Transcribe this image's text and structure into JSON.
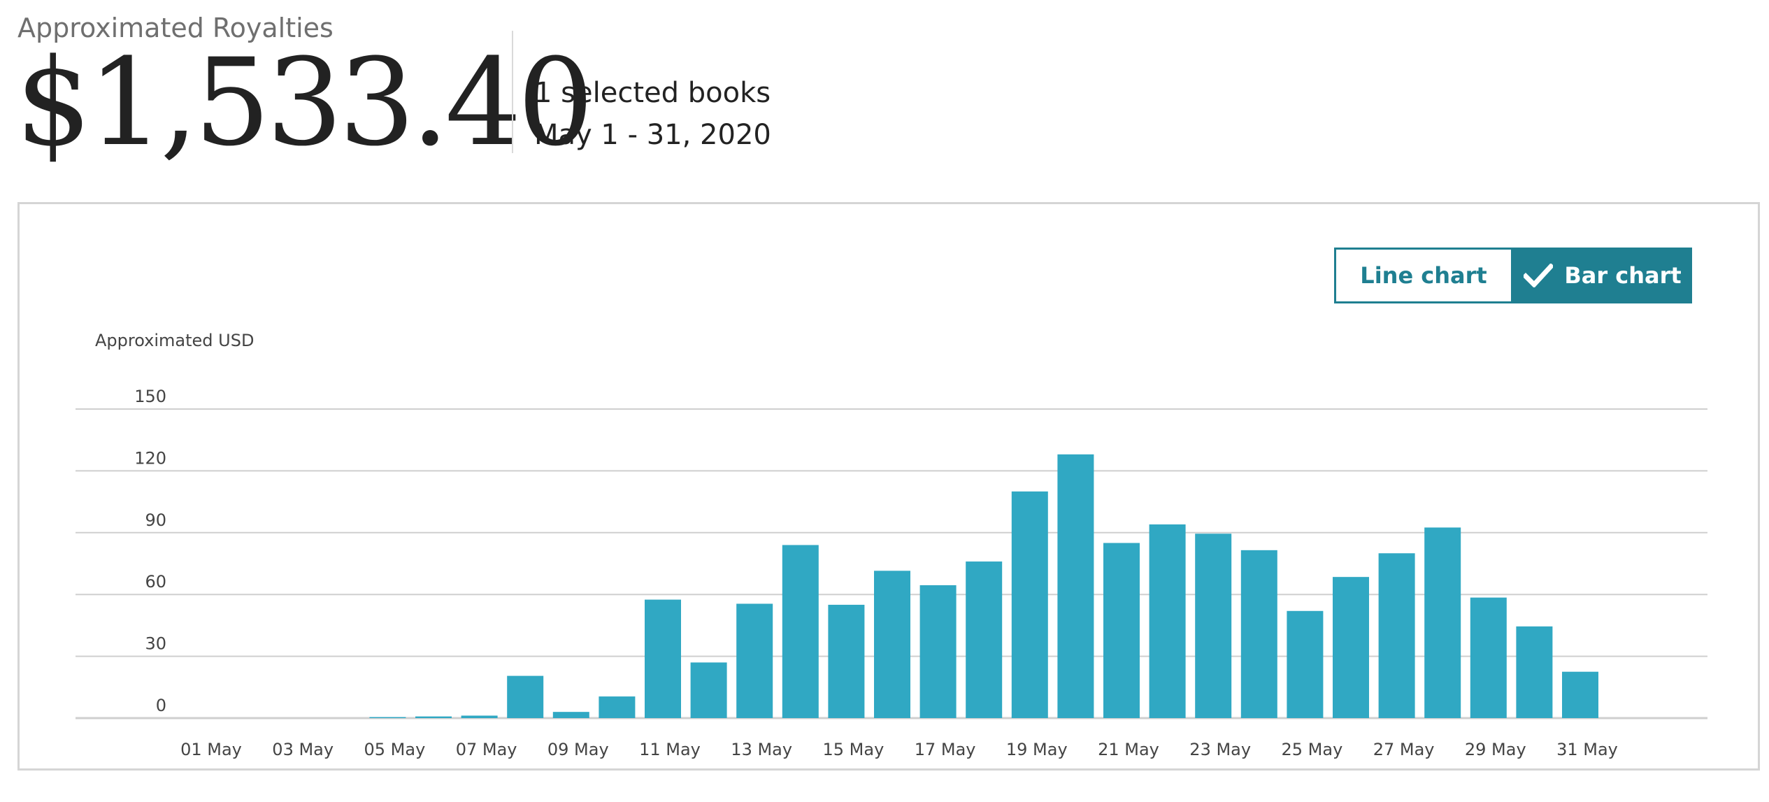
{
  "header": {
    "title": "Approximated Royalties",
    "amount": "$1,533.40",
    "books": "1 selected books",
    "dates": "May 1 - 31, 2020"
  },
  "toggle": {
    "line_label": "Line chart",
    "bar_label": "Bar chart",
    "selected": "bar",
    "accent": "#1f7f91"
  },
  "colors": {
    "bar": "#30a8c3",
    "grid": "#cfcfcf"
  },
  "chart_data": {
    "type": "bar",
    "ylabel": "Approximated USD",
    "ylim": [
      0,
      150
    ],
    "yticks": [
      0,
      30,
      60,
      90,
      120,
      150
    ],
    "grid": true,
    "categories": [
      "01 May",
      "02 May",
      "03 May",
      "04 May",
      "05 May",
      "06 May",
      "07 May",
      "08 May",
      "09 May",
      "10 May",
      "11 May",
      "12 May",
      "13 May",
      "14 May",
      "15 May",
      "16 May",
      "17 May",
      "18 May",
      "19 May",
      "20 May",
      "21 May",
      "22 May",
      "23 May",
      "24 May",
      "25 May",
      "26 May",
      "27 May",
      "28 May",
      "29 May",
      "30 May",
      "31 May"
    ],
    "xtick_labels": [
      "01 May",
      "03 May",
      "05 May",
      "07 May",
      "09 May",
      "11 May",
      "13 May",
      "15 May",
      "17 May",
      "19 May",
      "21 May",
      "23 May",
      "25 May",
      "27 May",
      "29 May",
      "31 May"
    ],
    "values": [
      0,
      0,
      0,
      0,
      0.5,
      0.8,
      1.2,
      20.5,
      3,
      10.5,
      57.5,
      27,
      55.5,
      84,
      55,
      71.5,
      64.5,
      76,
      110,
      128,
      85,
      94,
      89.5,
      81.5,
      52,
      68.5,
      80,
      92.5,
      58.5,
      44.5,
      22.5
    ]
  }
}
